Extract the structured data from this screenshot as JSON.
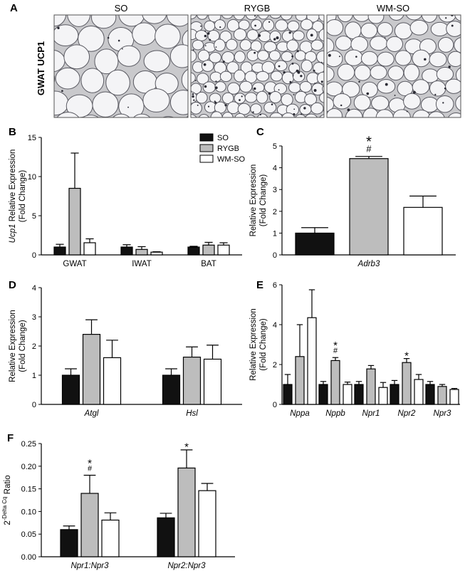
{
  "panel_letters": {
    "A": "A",
    "B": "B",
    "C": "C",
    "D": "D",
    "E": "E",
    "F": "F"
  },
  "legend": {
    "items": [
      "SO",
      "RYGB",
      "WM-SO"
    ]
  },
  "colors": {
    "SO": "#111111",
    "RYGB": "#bdbdbd",
    "WM-SO": "#ffffff",
    "micro_bg": "#c9c9cc",
    "micro_membrane": "#5a5a62"
  },
  "micrographs": {
    "row_label": "GWAT UCP1",
    "columns": [
      "SO",
      "RYGB",
      "WM-SO"
    ]
  },
  "chart_data": [
    {
      "id": "B",
      "type": "bar",
      "ylabel_italic": "Ucp1",
      "ylabel_rest": " Relative Expression",
      "ylabel_line2": "(Fold Change)",
      "categories": [
        "GWAT",
        "IWAT",
        "BAT"
      ],
      "ylim": [
        0,
        15
      ],
      "yticks": [
        "0",
        "5",
        "10",
        "15"
      ],
      "series": [
        {
          "name": "SO",
          "values": [
            1.0,
            1.0,
            1.0
          ],
          "errors": [
            0.35,
            0.3,
            0.1
          ]
        },
        {
          "name": "RYGB",
          "values": [
            8.5,
            0.7,
            1.25
          ],
          "errors": [
            4.5,
            0.35,
            0.35
          ]
        },
        {
          "name": "WM-SO",
          "values": [
            1.55,
            0.35,
            1.25
          ],
          "errors": [
            0.5,
            0.05,
            0.3
          ]
        }
      ],
      "annotations": []
    },
    {
      "id": "C",
      "type": "bar",
      "ylabel": "Relative Expression",
      "ylabel_line2": "(Fold Change)",
      "xlabel": "Adrb3",
      "ylim": [
        0,
        5
      ],
      "yticks": [
        "0",
        "1",
        "2",
        "3",
        "4",
        "5"
      ],
      "series": [
        {
          "name": "SO",
          "values": [
            1.0
          ],
          "errors": [
            0.25
          ]
        },
        {
          "name": "RYGB",
          "values": [
            4.42
          ],
          "errors": [
            0.1
          ]
        },
        {
          "name": "WM-SO",
          "values": [
            2.18
          ],
          "errors": [
            0.52
          ]
        }
      ],
      "annotations": [
        {
          "series": "RYGB",
          "index": 0,
          "marks": [
            "*",
            "#"
          ]
        }
      ]
    },
    {
      "id": "D",
      "type": "bar",
      "ylabel": "Relative Expression",
      "ylabel_line2": "(Fold Change)",
      "categories": [
        "Atgl",
        "Hsl"
      ],
      "ylim": [
        0,
        4
      ],
      "yticks": [
        "0",
        "1",
        "2",
        "3",
        "4"
      ],
      "series": [
        {
          "name": "SO",
          "values": [
            1.0,
            1.0
          ],
          "errors": [
            0.22,
            0.22
          ]
        },
        {
          "name": "RYGB",
          "values": [
            2.4,
            1.62
          ],
          "errors": [
            0.5,
            0.35
          ]
        },
        {
          "name": "WM-SO",
          "values": [
            1.6,
            1.55
          ],
          "errors": [
            0.6,
            0.48
          ]
        }
      ],
      "annotations": []
    },
    {
      "id": "E",
      "type": "bar",
      "ylabel": "Relative Expression",
      "ylabel_line2": "(Fold Change)",
      "categories": [
        "Nppa",
        "Nppb",
        "Npr1",
        "Npr2",
        "Npr3"
      ],
      "ylim": [
        0,
        6
      ],
      "yticks": [
        "0",
        "2",
        "4",
        "6"
      ],
      "series": [
        {
          "name": "SO",
          "values": [
            1.0,
            1.0,
            1.0,
            1.0,
            1.0
          ],
          "errors": [
            0.5,
            0.15,
            0.15,
            0.2,
            0.15
          ]
        },
        {
          "name": "RYGB",
          "values": [
            2.4,
            2.2,
            1.78,
            2.1,
            0.9
          ],
          "errors": [
            1.6,
            0.15,
            0.17,
            0.2,
            0.1
          ]
        },
        {
          "name": "WM-SO",
          "values": [
            4.35,
            1.0,
            0.85,
            1.25,
            0.75
          ],
          "errors": [
            1.4,
            0.12,
            0.25,
            0.25,
            0.05
          ]
        }
      ],
      "annotations": [
        {
          "series": "RYGB",
          "index": 1,
          "marks": [
            "*",
            "#"
          ]
        },
        {
          "series": "RYGB",
          "index": 3,
          "marks": [
            "*"
          ]
        }
      ]
    },
    {
      "id": "F",
      "type": "bar",
      "ylabel_base": "2",
      "ylabel_sup": "-Delta Cq",
      "ylabel_rest": " Ratio",
      "categories": [
        "Npr1:Npr3",
        "Npr2:Npr3"
      ],
      "ylim": [
        0,
        0.25
      ],
      "yticks": [
        "0.00",
        "0.05",
        "0.10",
        "0.15",
        "0.20",
        "0.25"
      ],
      "series": [
        {
          "name": "SO",
          "values": [
            0.06,
            0.086
          ],
          "errors": [
            0.008,
            0.01
          ]
        },
        {
          "name": "RYGB",
          "values": [
            0.14,
            0.196
          ],
          "errors": [
            0.04,
            0.04
          ]
        },
        {
          "name": "WM-SO",
          "values": [
            0.081,
            0.146
          ],
          "errors": [
            0.016,
            0.016
          ]
        }
      ],
      "annotations": [
        {
          "series": "RYGB",
          "index": 0,
          "marks": [
            "*",
            "#"
          ]
        },
        {
          "series": "RYGB",
          "index": 1,
          "marks": [
            "*"
          ]
        }
      ]
    }
  ]
}
